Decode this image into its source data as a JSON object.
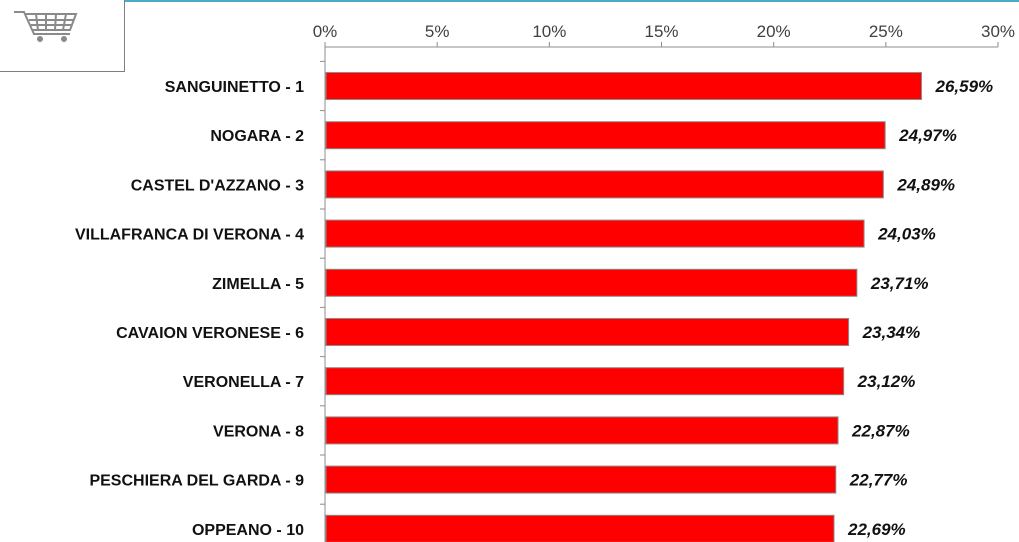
{
  "chart_data": {
    "type": "bar",
    "orientation": "horizontal",
    "categories": [
      "SANGUINETTO - 1",
      "NOGARA - 2",
      "CASTEL D'AZZANO - 3",
      "VILLAFRANCA DI VERONA - 4",
      "ZIMELLA - 5",
      "CAVAION VERONESE - 6",
      "VERONELLA - 7",
      "VERONA - 8",
      "PESCHIERA DEL GARDA - 9",
      "OPPEANO - 10"
    ],
    "values": [
      26.59,
      24.97,
      24.89,
      24.03,
      23.71,
      23.34,
      23.12,
      22.87,
      22.77,
      22.69
    ],
    "value_labels": [
      "26,59%",
      "24,97%",
      "24,89%",
      "24,03%",
      "23,71%",
      "23,34%",
      "23,12%",
      "22,87%",
      "22,77%",
      "22,69%"
    ],
    "xlim": [
      0,
      30
    ],
    "x_ticks": [
      0,
      5,
      10,
      15,
      20,
      25,
      30
    ],
    "x_tick_labels": [
      "0%",
      "5%",
      "10%",
      "15%",
      "20%",
      "25%",
      "30%"
    ],
    "axis_position": "top",
    "grid": false,
    "bar_color": "#ff0000",
    "bar_border_color": "#8c8c8c",
    "title": "",
    "xlabel": "",
    "ylabel": ""
  },
  "logo": {
    "icon": "shopping-cart-icon"
  }
}
